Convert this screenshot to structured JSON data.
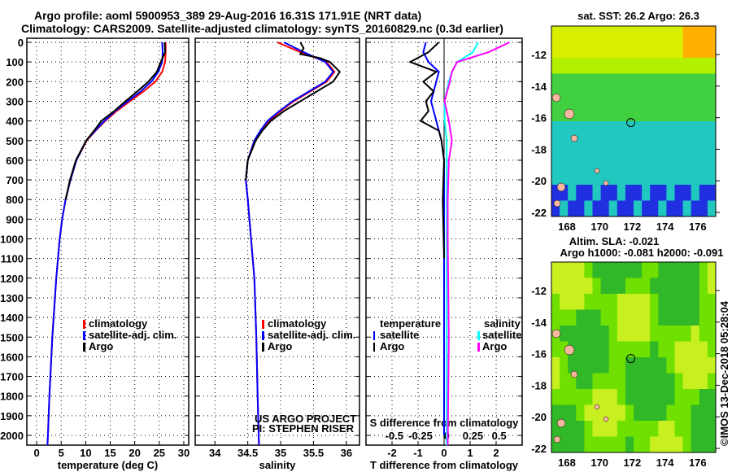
{
  "title": {
    "line1": "Argo profile: aoml 5900953_389 29-Aug-2016 16.31S 171.91E (NRT data)",
    "line2": "Climatology: CARS2009. Satellite-adjusted climatology: synTS_20160829.nc (0.3d earlier)"
  },
  "colors": {
    "climatology": "#ff0000",
    "satellite": "#0000ff",
    "argo": "#000000",
    "sal_sat": "#00ffff",
    "sal_argo": "#ff00ff"
  },
  "depth_ticks": [
    "0",
    "100",
    "200",
    "300",
    "400",
    "500",
    "600",
    "700",
    "800",
    "900",
    "1000",
    "1100",
    "1200",
    "1300",
    "1400",
    "1500",
    "1600",
    "1700",
    "1800",
    "1900",
    "2000"
  ],
  "credit": {
    "line1": "US ARGO PROJECT",
    "line2": "PI: STEPHEN RISER"
  },
  "stamp": "©IMOS 13-Dec-2018 05:28:04",
  "chart_data": [
    {
      "type": "line",
      "xlabel": "temperature (deg C)",
      "ylabel": "depth",
      "xlim": [
        -2,
        31
      ],
      "ylim": [
        2050,
        0
      ],
      "xticks": [
        "0",
        "5",
        "10",
        "15",
        "20",
        "25",
        "30"
      ],
      "legend": [
        "climatology",
        "satellite-adj. clim.",
        "Argo"
      ],
      "series": [
        {
          "name": "climatology",
          "depth": [
            0,
            50,
            100,
            150,
            200,
            250,
            300,
            350,
            400,
            450,
            500,
            600,
            700,
            800,
            900,
            1000,
            1200,
            1500,
            1800,
            2000,
            2050
          ],
          "values": [
            26.3,
            26.3,
            26.2,
            25.6,
            24.2,
            21.8,
            19,
            16.3,
            14,
            12,
            10.2,
            8.1,
            6.9,
            5.9,
            5.2,
            4.7,
            4.0,
            3.2,
            2.6,
            2.3,
            2.2
          ]
        },
        {
          "name": "satellite-adj. clim.",
          "depth": [
            0,
            50,
            100,
            150,
            200,
            250,
            300,
            350,
            400,
            450,
            500,
            600,
            700,
            800,
            900,
            1000,
            1200,
            1500,
            1800,
            2000,
            2050
          ],
          "values": [
            25.6,
            25.7,
            25.6,
            24.8,
            23.4,
            21.2,
            18.6,
            16,
            13.8,
            11.9,
            10.1,
            8.1,
            6.9,
            5.9,
            5.2,
            4.7,
            4.0,
            3.2,
            2.6,
            2.3,
            2.2
          ]
        },
        {
          "name": "Argo",
          "depth": [
            0,
            50,
            100,
            150,
            200,
            250,
            300,
            350,
            400,
            450,
            500,
            600,
            700,
            800
          ],
          "values": [
            26.1,
            26.2,
            25.3,
            24.5,
            22.8,
            20.5,
            18.1,
            15.8,
            13.2,
            11.7,
            10.1,
            8.0,
            6.8,
            5.9
          ]
        }
      ]
    },
    {
      "type": "line",
      "xlabel": "salinity",
      "xlim": [
        33.7,
        36.2
      ],
      "ylim": [
        2050,
        0
      ],
      "xticks": [
        "34",
        "34.5",
        "35",
        "35.5",
        "36"
      ],
      "legend": [
        "climatology",
        "satellite-adj. clim.",
        "Argo"
      ],
      "series": [
        {
          "name": "climatology",
          "depth": [
            0,
            50,
            100,
            150,
            200,
            250,
            300,
            350,
            400,
            450,
            500,
            600,
            700,
            800,
            1000,
            1200,
            1500,
            1800,
            2050
          ],
          "values": [
            34.95,
            35.3,
            35.7,
            35.82,
            35.7,
            35.45,
            35.2,
            35.0,
            34.82,
            34.7,
            34.6,
            34.5,
            34.47,
            34.5,
            34.55,
            34.6,
            34.63,
            34.65,
            34.67
          ]
        },
        {
          "name": "satellite-adj. clim.",
          "depth": [
            0,
            50,
            100,
            150,
            200,
            250,
            300,
            350,
            400,
            450,
            500,
            600,
            700,
            800,
            1000,
            1200,
            1500,
            1800,
            2050
          ],
          "values": [
            35.05,
            35.35,
            35.68,
            35.8,
            35.68,
            35.43,
            35.18,
            34.98,
            34.8,
            34.69,
            34.6,
            34.5,
            34.47,
            34.5,
            34.55,
            34.6,
            34.63,
            34.65,
            34.67
          ]
        },
        {
          "name": "Argo",
          "depth": [
            0,
            30,
            60,
            80,
            100,
            150,
            200,
            250,
            300,
            350,
            400,
            450,
            500,
            600,
            700
          ],
          "values": [
            35.3,
            35.35,
            35.3,
            35.6,
            35.75,
            35.9,
            35.8,
            35.55,
            35.3,
            35.05,
            34.85,
            34.72,
            34.62,
            34.5,
            34.47
          ]
        }
      ]
    },
    {
      "type": "line",
      "xlabel": "T difference from climatology",
      "x2label": "S difference from climatology",
      "xlim": [
        -3,
        3
      ],
      "x2lim": [
        -0.77,
        0.72
      ],
      "ylim": [
        2050,
        0
      ],
      "xticks": [
        "-2",
        "-1",
        "0",
        "1",
        "2"
      ],
      "x2ticks": [
        "-0.5",
        "-0.25",
        "0",
        "0.25",
        "0.5"
      ],
      "legend_t": {
        "title": "temperature",
        "items": [
          "satellite",
          "Argo"
        ]
      },
      "legend_s": {
        "title": "salinity",
        "items": [
          "satellite",
          "Argo"
        ]
      },
      "series": [
        {
          "name": "T satellite",
          "axis": "T",
          "depth": [
            0,
            50,
            100,
            150,
            200,
            300,
            400,
            500,
            600,
            800,
            1000,
            2000
          ],
          "values": [
            -0.7,
            -0.8,
            -0.6,
            -0.2,
            -0.3,
            -0.5,
            -0.3,
            -0.1,
            0,
            0,
            0,
            0
          ]
        },
        {
          "name": "T Argo",
          "axis": "T",
          "depth": [
            0,
            50,
            100,
            150,
            200,
            250,
            300,
            350,
            400,
            450,
            500,
            600,
            800,
            1100
          ],
          "values": [
            -0.2,
            -0.6,
            -1.3,
            -0.3,
            -0.8,
            -0.4,
            -0.7,
            -0.6,
            -0.9,
            -0.2,
            -0.1,
            0,
            -0.05,
            0
          ]
        },
        {
          "name": "S satellite",
          "axis": "S",
          "depth": [
            0,
            50,
            100,
            150,
            200,
            300,
            400,
            500,
            600,
            800,
            1000,
            2050
          ],
          "values": [
            0.3,
            0.25,
            0.1,
            0.05,
            0.02,
            -0.02,
            -0.02,
            0,
            0,
            0,
            0,
            0
          ]
        },
        {
          "name": "S Argo",
          "axis": "S",
          "depth": [
            0,
            50,
            100,
            150,
            200,
            300,
            400,
            500,
            600,
            800,
            1000,
            1500,
            2050
          ],
          "values": [
            0.6,
            0.4,
            0.1,
            0.05,
            0.03,
            -0.02,
            0.02,
            0.05,
            0.02,
            0.01,
            0.01,
            0.02,
            0.01
          ]
        }
      ]
    }
  ],
  "map1": {
    "title": "sat. SST: 26.2 Argo: 26.3",
    "lat_ticks": [
      "-12",
      "-14",
      "-16",
      "-18",
      "-20",
      "-22"
    ],
    "lon_ticks": [
      "168",
      "170",
      "172",
      "174",
      "176"
    ]
  },
  "map2": {
    "title1": "Altim. SLA: -0.021",
    "title2": "Argo h1000: -0.081 h2000: -0.091",
    "lat_ticks": [
      "-12",
      "-14",
      "-16",
      "-18",
      "-20",
      "-22"
    ],
    "lon_ticks": [
      "168",
      "170",
      "172",
      "174",
      "176"
    ]
  }
}
